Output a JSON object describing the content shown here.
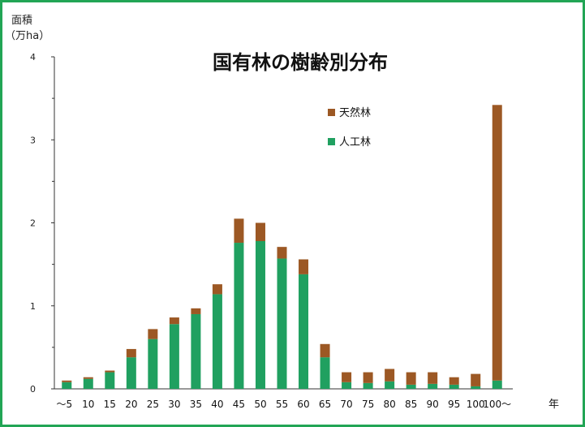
{
  "chart_data": {
    "type": "bar",
    "stacked": true,
    "title": "国有林の樹齢別分布",
    "ylabel_line1": "面積",
    "ylabel_line2": "（万ha）",
    "xlabel": "年",
    "ylim": [
      0,
      4
    ],
    "yticks": [
      "0",
      "1",
      "2",
      "3",
      "4"
    ],
    "categories": [
      "〜5",
      "10",
      "15",
      "20",
      "25",
      "30",
      "35",
      "40",
      "45",
      "50",
      "55",
      "60",
      "65",
      "70",
      "75",
      "80",
      "85",
      "90",
      "95",
      "100",
      "100〜"
    ],
    "series": [
      {
        "name": "人工林",
        "color": "#20a060",
        "values": [
          0.08,
          0.12,
          0.2,
          0.38,
          0.6,
          0.78,
          0.9,
          1.14,
          1.76,
          1.78,
          1.57,
          1.38,
          0.38,
          0.08,
          0.07,
          0.09,
          0.05,
          0.06,
          0.05,
          0.03,
          0.1
        ]
      },
      {
        "name": "天然林",
        "color": "#9c5824",
        "values": [
          0.02,
          0.02,
          0.02,
          0.1,
          0.12,
          0.08,
          0.07,
          0.12,
          0.29,
          0.22,
          0.14,
          0.18,
          0.16,
          0.12,
          0.13,
          0.15,
          0.15,
          0.14,
          0.09,
          0.15,
          3.32
        ]
      }
    ],
    "legend_position": "top-right",
    "grid": false
  }
}
